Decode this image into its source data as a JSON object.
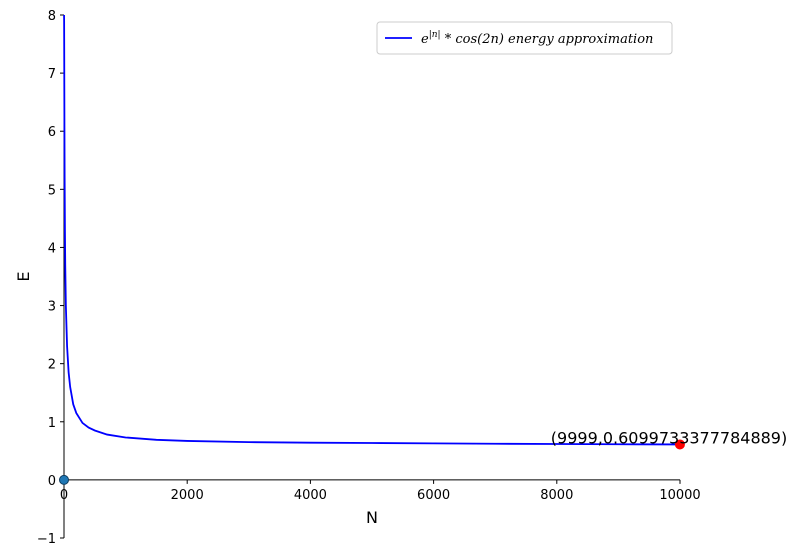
{
  "chart_data": {
    "type": "line",
    "title": "",
    "xlabel": "N",
    "ylabel": "E",
    "xlim": [
      0,
      10000
    ],
    "ylim": [
      -1,
      8
    ],
    "xticks": [
      0,
      2000,
      4000,
      6000,
      8000,
      10000
    ],
    "yticks": [
      -1,
      0,
      1,
      2,
      3,
      4,
      5,
      6,
      7,
      8
    ],
    "xtick_labels": [
      "0",
      "2000",
      "4000",
      "6000",
      "8000",
      "10000"
    ],
    "ytick_labels": [
      "−1",
      "0",
      "1",
      "2",
      "3",
      "4",
      "5",
      "6",
      "7",
      "8"
    ],
    "grid": false,
    "legend_position": "top-right",
    "series": [
      {
        "name": "e^{|n|} * cos(2n) energy approximation",
        "legend_base": "e",
        "legend_exp": "|n|",
        "legend_rest": " * cos(2n) energy approximation",
        "color": "#0000ff",
        "x": [
          1,
          2,
          3,
          4,
          5,
          7,
          10,
          15,
          20,
          30,
          50,
          75,
          100,
          150,
          200,
          300,
          400,
          500,
          700,
          1000,
          1500,
          2000,
          3000,
          4000,
          5000,
          6000,
          7000,
          8000,
          9000,
          9999
        ],
        "y": [
          8.0,
          7.9,
          7.6,
          7.2,
          6.8,
          6.1,
          5.2,
          4.3,
          3.7,
          3.0,
          2.3,
          1.85,
          1.6,
          1.3,
          1.15,
          0.98,
          0.9,
          0.85,
          0.78,
          0.73,
          0.69,
          0.67,
          0.65,
          0.64,
          0.635,
          0.628,
          0.622,
          0.617,
          0.613,
          0.6099733377784889
        ]
      }
    ],
    "points": [
      {
        "x": 0,
        "y": 0,
        "color": "#1f77b4"
      },
      {
        "x": 9999,
        "y": 0.6099733377784889,
        "color": "#ff0000"
      }
    ],
    "annotation": {
      "text": "(9999,0.6099733377784889)",
      "x": 8000,
      "y": 0.6099733377784889
    }
  }
}
